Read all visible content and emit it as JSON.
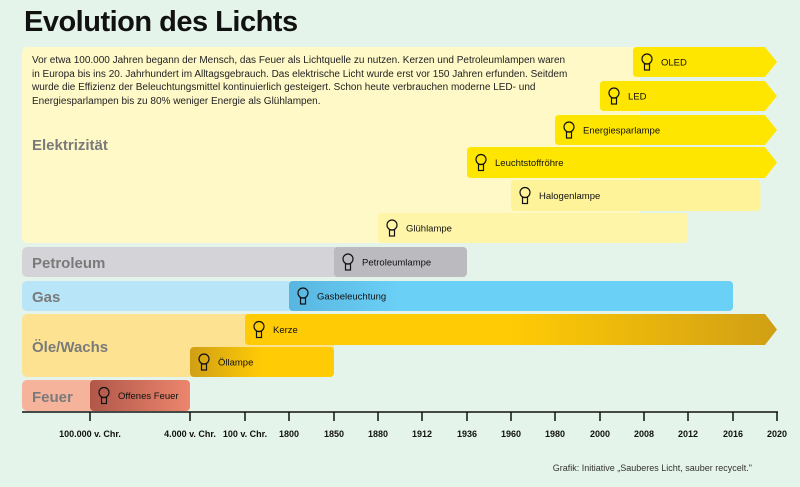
{
  "title": "Evolution des Lichts",
  "intro": "Vor etwa 100.000 Jahren begann der Mensch, das Feuer als Lichtquelle zu nutzen. Kerzen und Petroleumlampen waren in Europa bis ins 20. Jahrhundert im Alltagsgebrauch. Das elektrische Licht wurde erst vor 150 Jahren erfunden. Seitdem wurde die Effizienz der Beleuchtungsmittel kontinuierlich gesteigert. Schon heute verbrauchen moderne LED- und Energiesparlampen bis zu 80% weniger Energie als Glühlampen.",
  "credit": "Grafik: Initiative „Sauberes Licht, sauber recycelt.\"",
  "chart_data": {
    "type": "bar",
    "orientation": "horizontal-timeline",
    "title": "Evolution des Lichts",
    "ticks": [
      {
        "label": "100.000 v. Chr.",
        "value": -100000
      },
      {
        "label": "4.000 v. Chr.",
        "value": -4000
      },
      {
        "label": "100 v. Chr.",
        "value": -100
      },
      {
        "label": "1800",
        "value": 1800
      },
      {
        "label": "1850",
        "value": 1850
      },
      {
        "label": "1880",
        "value": 1880
      },
      {
        "label": "1912",
        "value": 1912
      },
      {
        "label": "1936",
        "value": 1936
      },
      {
        "label": "1960",
        "value": 1960
      },
      {
        "label": "1980",
        "value": 1980
      },
      {
        "label": "2000",
        "value": 2000
      },
      {
        "label": "2008",
        "value": 2008
      },
      {
        "label": "2012",
        "value": 2012
      },
      {
        "label": "2016",
        "value": 2016
      },
      {
        "label": "2020",
        "value": 2020
      }
    ],
    "categories": [
      {
        "name": "Elektrizität",
        "color": "#fff9c8"
      },
      {
        "name": "Petroleum",
        "color": "#d4d4d8"
      },
      {
        "name": "Gas",
        "color": "#b8e5f8"
      },
      {
        "name": "Öle/Wachs",
        "color": "#fde391"
      },
      {
        "name": "Feuer",
        "color": "#f5b39c"
      }
    ],
    "bars": [
      {
        "label": "OLED",
        "category": "Elektrizität",
        "start": 2006,
        "end": 2020,
        "ongoing": true,
        "color": "#ffe600",
        "icon": "oled-panel-icon"
      },
      {
        "label": "LED",
        "category": "Elektrizität",
        "start": 2000,
        "end": 2020,
        "ongoing": true,
        "color": "#ffe600",
        "icon": "led-bulb-icon"
      },
      {
        "label": "Energiesparlampe",
        "category": "Elektrizität",
        "start": 1980,
        "end": 2020,
        "ongoing": true,
        "color": "#ffe600",
        "icon": "cfl-bulb-icon"
      },
      {
        "label": "Leuchtstoffröhre",
        "category": "Elektrizität",
        "start": 1936,
        "end": 2020,
        "ongoing": true,
        "color": "#ffe600",
        "icon": "fluorescent-tube-icon"
      },
      {
        "label": "Halogenlampe",
        "category": "Elektrizität",
        "start": 1960,
        "end": 2018.5,
        "ongoing": false,
        "color": "#fff39a",
        "icon": "halogen-bulb-icon"
      },
      {
        "label": "Glühlampe",
        "category": "Elektrizität",
        "start": 1880,
        "end": 2012,
        "ongoing": false,
        "color": "#fff5a8",
        "icon": "incandescent-bulb-icon"
      },
      {
        "label": "Petroleumlampe",
        "category": "Petroleum",
        "start": 1850,
        "end": 1936,
        "ongoing": false,
        "color": "#bababf",
        "icon": "petroleum-lamp-icon"
      },
      {
        "label": "Gasbeleuchtung",
        "category": "Gas",
        "start": 1800,
        "end": 2016,
        "ongoing": false,
        "color": "#5fc3ec",
        "icon": "gas-lamp-icon"
      },
      {
        "label": "Kerze",
        "category": "Öle/Wachs",
        "start": -100,
        "end": 2020,
        "ongoing": true,
        "color": "#ffcb05",
        "icon": "candle-icon"
      },
      {
        "label": "Öllampe",
        "category": "Öle/Wachs",
        "start": -4000,
        "end": 1850,
        "ongoing": false,
        "color": "#e8b40c",
        "icon": "oil-lamp-icon"
      },
      {
        "label": "Offenes Feuer",
        "category": "Feuer",
        "start": -100000,
        "end": -4000,
        "ongoing": false,
        "color": "#c8644f",
        "icon": "fire-icon"
      }
    ]
  }
}
